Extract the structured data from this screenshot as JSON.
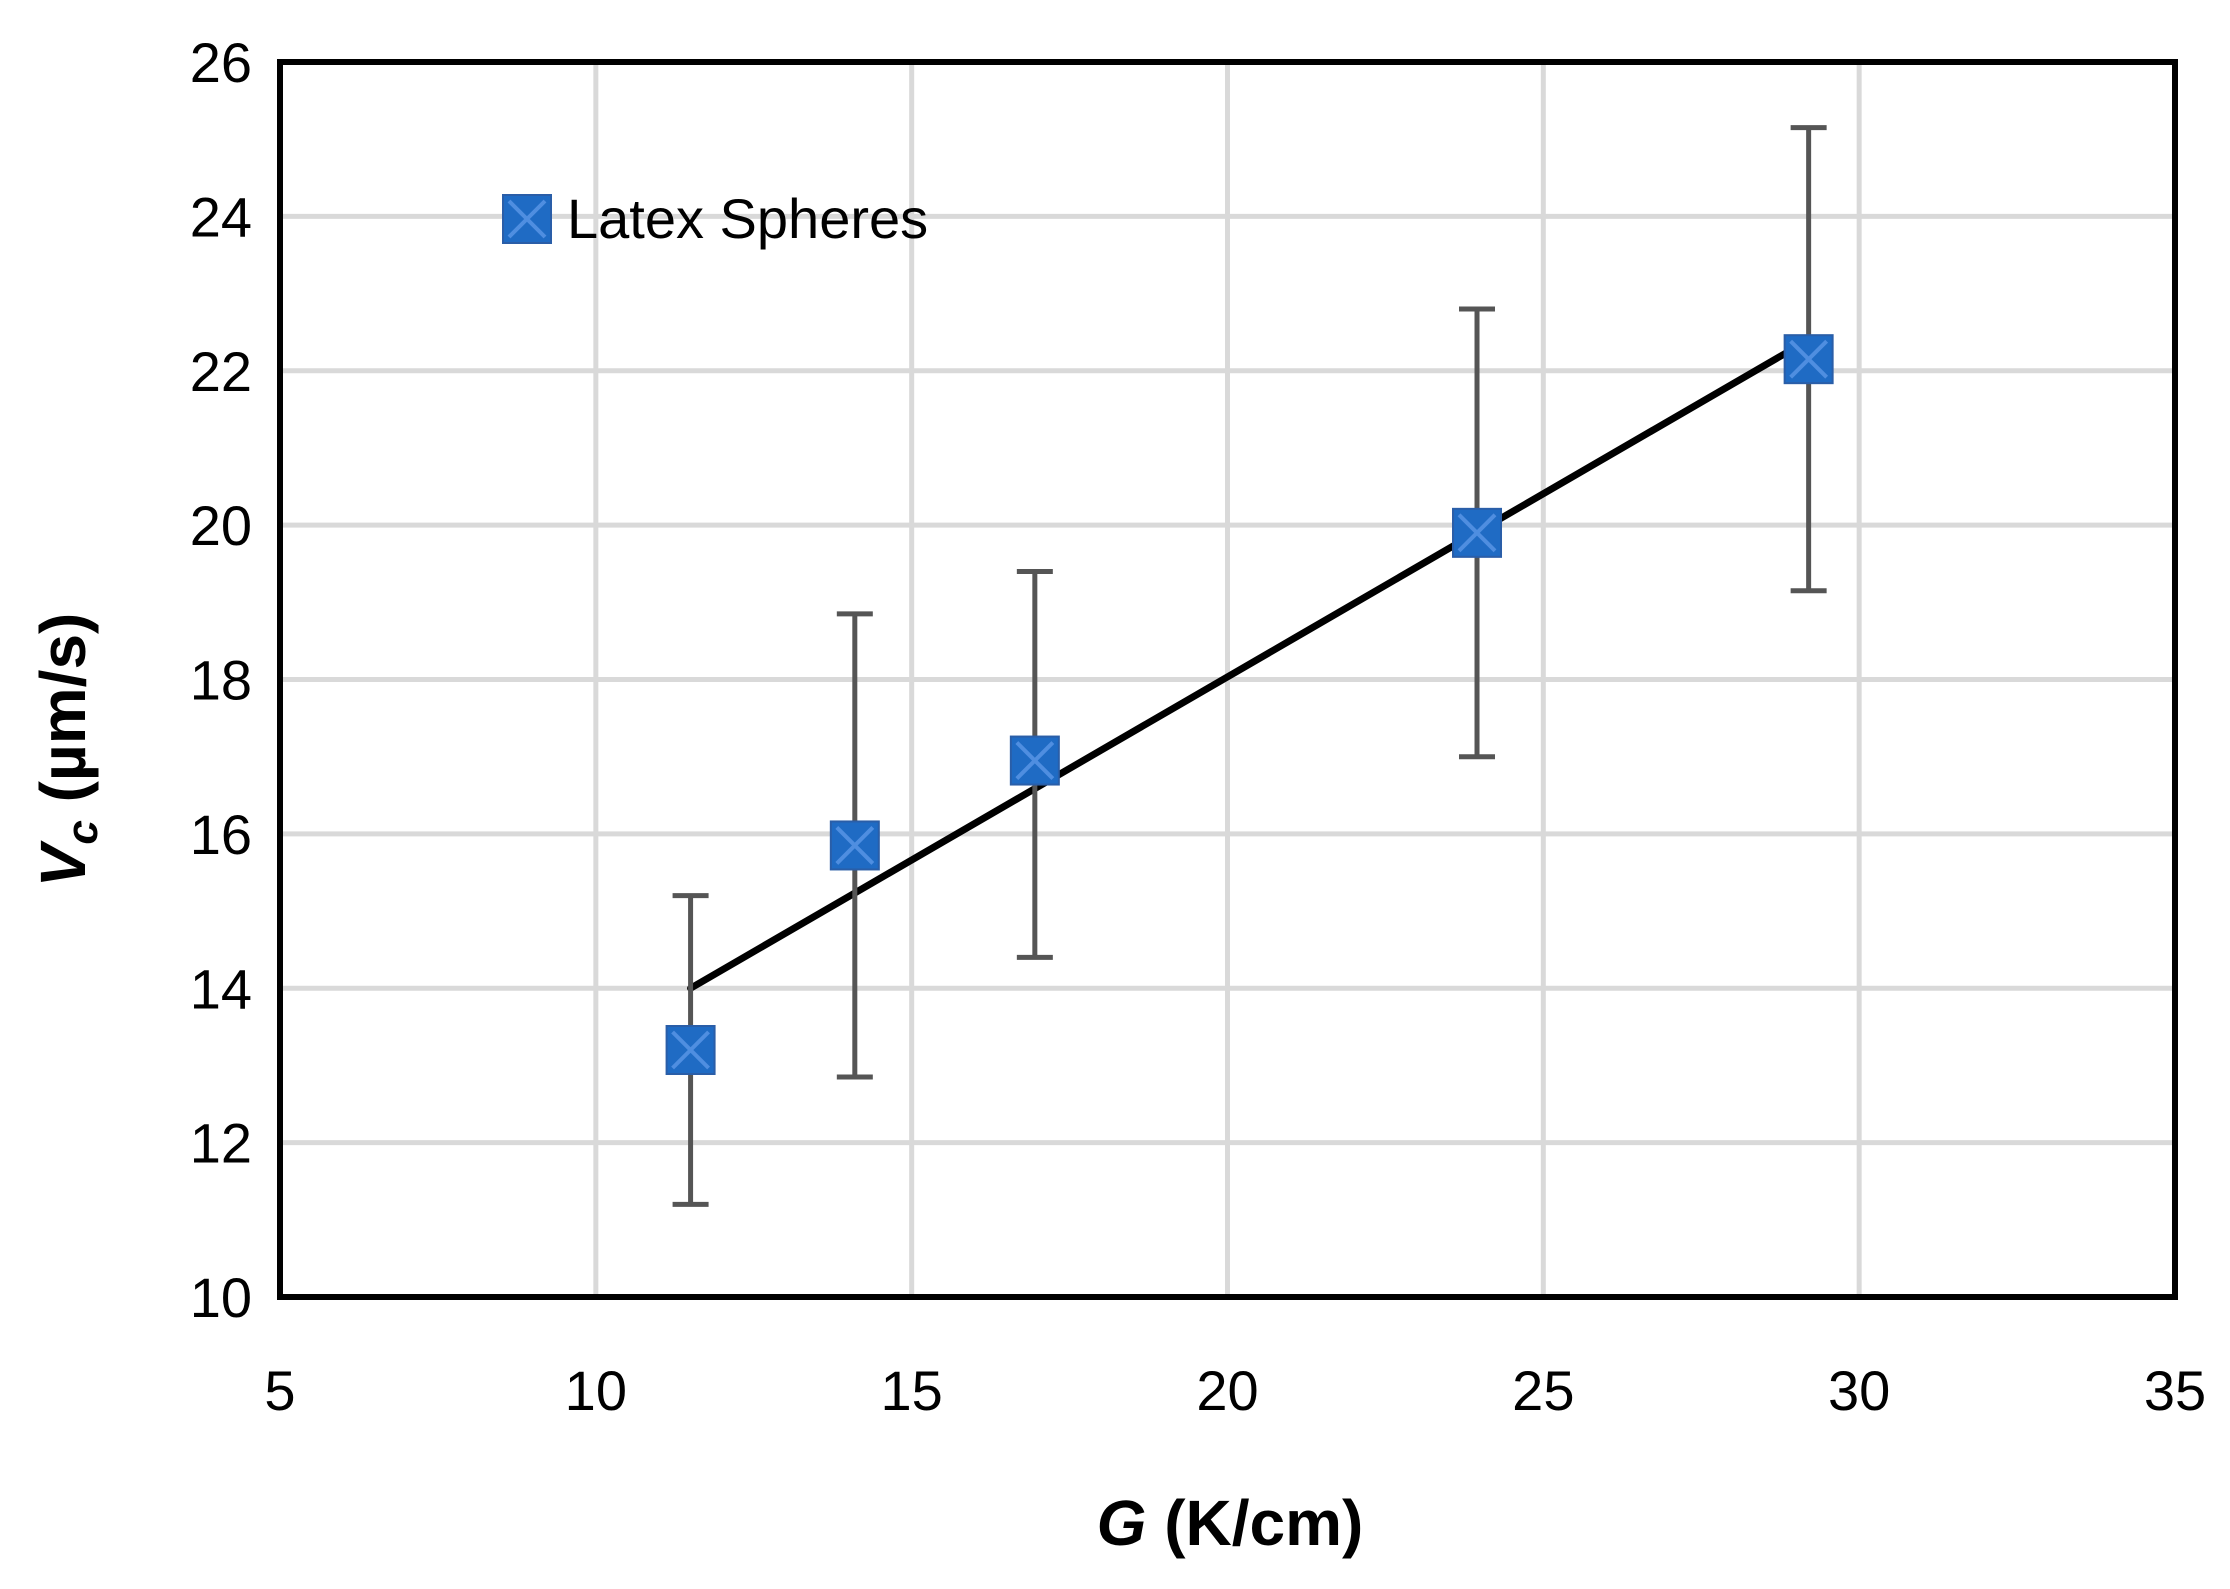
{
  "chart_data": {
    "type": "scatter",
    "title": "",
    "xlabel": {
      "main": "G",
      "unit": " (K/cm)"
    },
    "ylabel": {
      "main": "V",
      "sub": "c",
      "unit": " (µm/s)"
    },
    "xlim": [
      5,
      35
    ],
    "ylim": [
      10,
      26
    ],
    "xticks": [
      5,
      10,
      15,
      20,
      25,
      30,
      35
    ],
    "yticks": [
      10,
      12,
      14,
      16,
      18,
      20,
      22,
      24,
      26
    ],
    "grid": true,
    "legend_position": "top-left",
    "series": [
      {
        "name": "Latex Spheres",
        "marker": "square-x",
        "color": "#1f6bc4",
        "points": [
          {
            "x": 11.5,
            "y": 13.2,
            "err_low": 11.2,
            "err_high": 15.2
          },
          {
            "x": 14.1,
            "y": 15.85,
            "err_low": 12.85,
            "err_high": 18.85
          },
          {
            "x": 16.95,
            "y": 16.95,
            "err_low": 14.4,
            "err_high": 19.4
          },
          {
            "x": 23.95,
            "y": 19.9,
            "err_low": 17.0,
            "err_high": 22.8
          },
          {
            "x": 29.2,
            "y": 22.15,
            "err_low": 19.15,
            "err_high": 25.15
          }
        ]
      }
    ],
    "trendline": {
      "type": "linear",
      "color": "#000000",
      "x_start": 11.5,
      "y_start": 14.0,
      "x_end": 29.2,
      "y_end": 22.4
    },
    "errorbar_color": "#555555",
    "gridline_color": "#d9d9d9",
    "frame_color": "#000000"
  }
}
